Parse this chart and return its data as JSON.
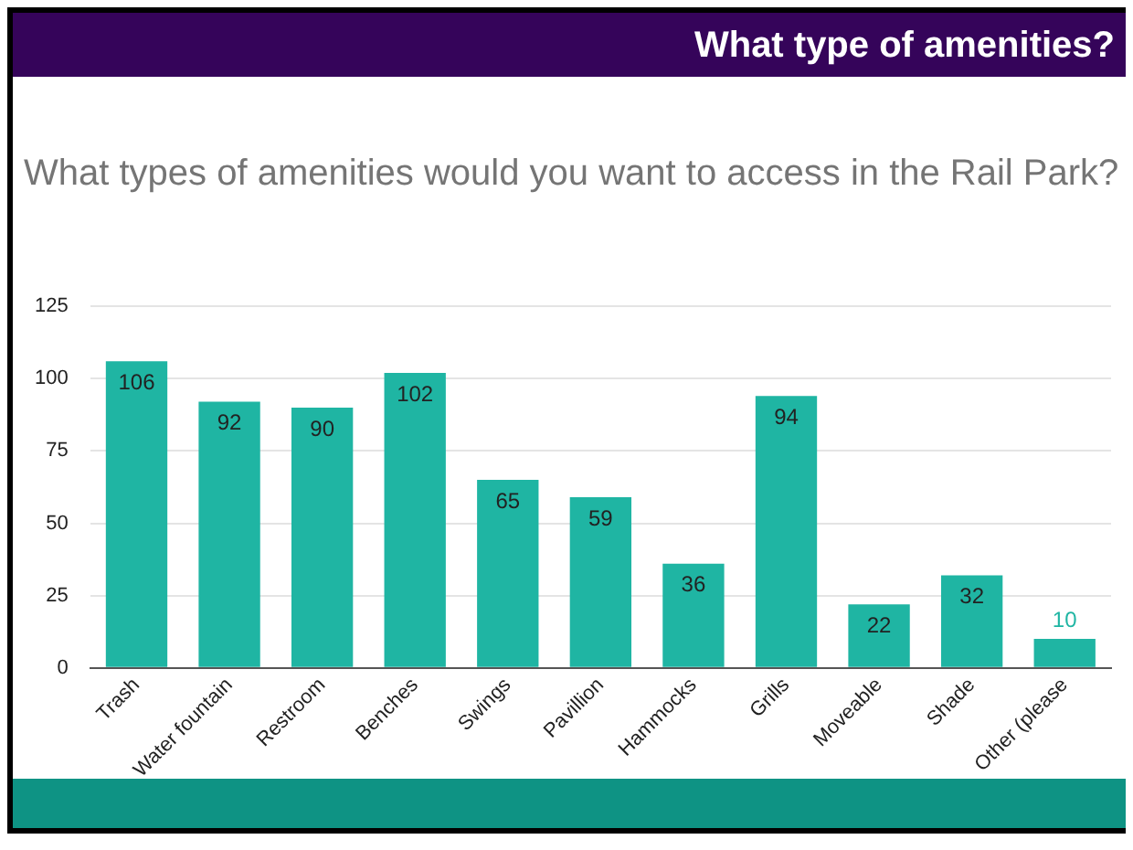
{
  "chart_data": {
    "type": "bar",
    "title": "What type of amenities?",
    "subtitle": "What types of amenities would you want to access in the Rail Park?",
    "categories": [
      "Trash",
      "Water fountain",
      "Restroom",
      "Benches",
      "Swings",
      "Pavillion",
      "Hammocks",
      "Grills",
      "Moveable",
      "Shade",
      "Other (please"
    ],
    "values": [
      106,
      92,
      90,
      102,
      65,
      59,
      36,
      94,
      22,
      32,
      10
    ],
    "color": "#1fb5a3",
    "ylim": [
      0,
      125
    ],
    "yticks": [
      0,
      25,
      50,
      75,
      100,
      125
    ],
    "grid": "y",
    "data_labels": true
  }
}
